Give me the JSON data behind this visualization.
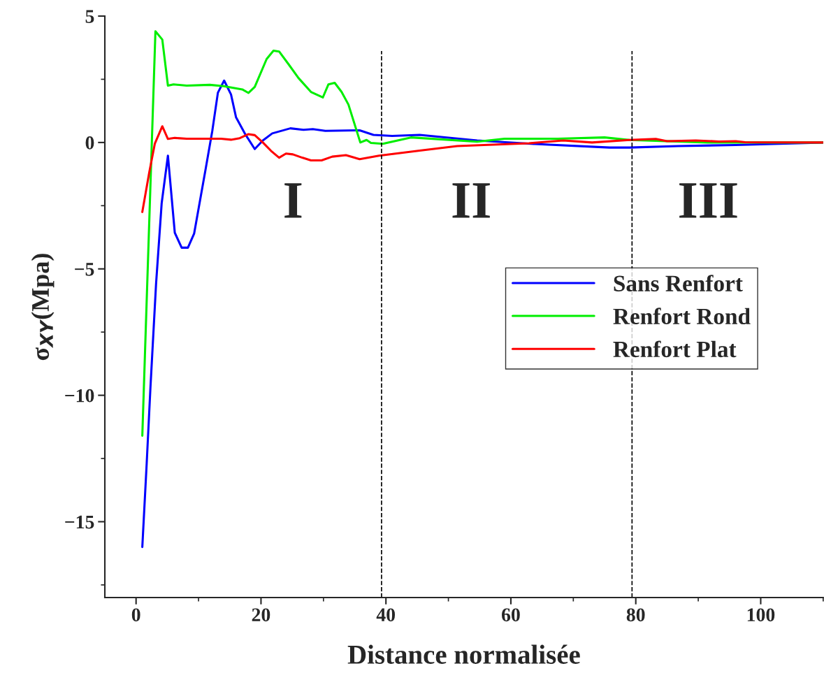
{
  "chart_data": {
    "type": "line",
    "xlabel": "Distance normalisée",
    "ylabel": "σ$_{XY}$(Mpa)",
    "xlim": [
      -5,
      110
    ],
    "ylim": [
      -18,
      5
    ],
    "xticks": [
      0,
      20,
      40,
      60,
      80,
      100
    ],
    "yticks": [
      -15,
      -10,
      -5,
      0,
      5
    ],
    "grid": false,
    "legend": "right",
    "marker": "none",
    "line_style": "solid",
    "ref_lines": [
      {
        "axis": "x",
        "value": 39.3,
        "color": "#000000",
        "line_style": "dashed"
      },
      {
        "axis": "x",
        "value": 79.4,
        "color": "#000000",
        "line_style": "dashed"
      }
    ],
    "annotations": [
      "I",
      "II",
      "III"
    ],
    "series": [
      {
        "name": "Sans Renfort",
        "color": "#0000ff",
        "x": [
          1,
          1.7,
          2.3,
          3.2,
          4.1,
          5.1,
          6.2,
          7.3,
          8.3,
          9.3,
          11.1,
          12.2,
          13.1,
          14.1,
          15.2,
          16,
          17.4,
          19,
          20.3,
          21.8,
          24.7,
          26.8,
          28.3,
          30.3,
          35.8,
          38,
          41,
          45.4,
          54.6,
          63.8,
          75.8,
          79,
          86.8,
          96,
          110
        ],
        "values": [
          -16,
          -12.7,
          -9.7,
          -5.6,
          -2.4,
          -0.52,
          -3.57,
          -4.16,
          -4.16,
          -3.6,
          -1.1,
          0.45,
          1.97,
          2.45,
          1.9,
          1.0,
          0.36,
          -0.26,
          0.08,
          0.36,
          0.56,
          0.5,
          0.53,
          0.46,
          0.48,
          0.3,
          0.26,
          0.3,
          0.08,
          -0.06,
          -0.2,
          -0.2,
          -0.14,
          -0.1,
          0.0
        ]
      },
      {
        "name": "Renfort Rond",
        "color": "#00ee00",
        "x": [
          1,
          3.1,
          4.2,
          5.1,
          6,
          8.1,
          11.8,
          14,
          17,
          18,
          19,
          20.9,
          22,
          22.9,
          24.4,
          26,
          28,
          29.9,
          30.8,
          31.8,
          32.9,
          34,
          35.9,
          36.9,
          37.6,
          39.5,
          44,
          54.6,
          59,
          67.5,
          75,
          79,
          91.5,
          110
        ],
        "values": [
          -11.6,
          4.4,
          4.07,
          2.25,
          2.3,
          2.25,
          2.28,
          2.23,
          2.1,
          1.96,
          2.2,
          3.3,
          3.63,
          3.6,
          3.1,
          2.55,
          2.0,
          1.78,
          2.3,
          2.36,
          2.0,
          1.5,
          0.0,
          0.1,
          -0.02,
          -0.05,
          0.2,
          0.03,
          0.15,
          0.15,
          0.2,
          0.1,
          0.0,
          0.0
        ]
      },
      {
        "name": "Renfort Plat",
        "color": "#ff0000",
        "x": [
          1,
          2.1,
          3,
          4.2,
          5.1,
          6.2,
          8.1,
          13.6,
          15.2,
          16.6,
          18,
          19,
          20.3,
          21.6,
          22.9,
          24,
          25.1,
          26.6,
          28,
          29.7,
          31.4,
          33.6,
          35.8,
          38.9,
          45.4,
          51.4,
          62.9,
          68.4,
          73,
          79,
          83.2,
          85,
          89.6,
          93.3,
          96,
          97.5,
          110
        ],
        "values": [
          -2.75,
          -1.2,
          -0.05,
          0.64,
          0.14,
          0.18,
          0.15,
          0.15,
          0.11,
          0.17,
          0.33,
          0.29,
          0.0,
          -0.33,
          -0.6,
          -0.44,
          -0.47,
          -0.6,
          -0.71,
          -0.71,
          -0.56,
          -0.5,
          -0.66,
          -0.52,
          -0.32,
          -0.14,
          -0.03,
          0.08,
          0.0,
          0.1,
          0.14,
          0.05,
          0.08,
          0.04,
          0.05,
          0.01,
          0.0
        ]
      }
    ]
  }
}
